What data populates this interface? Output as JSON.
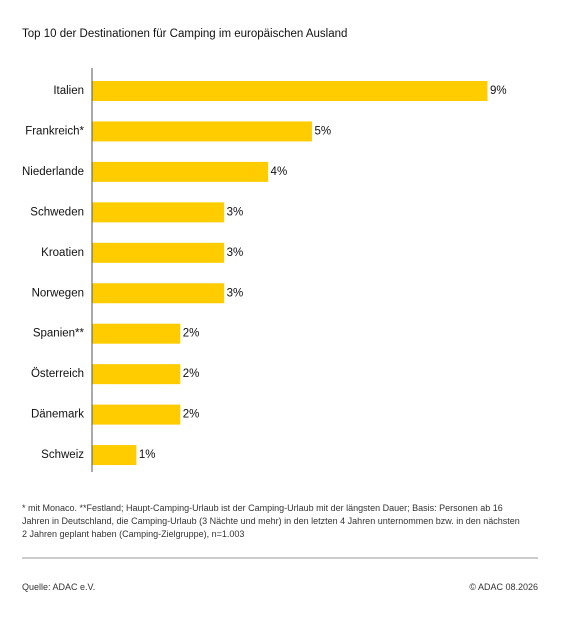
{
  "chart_data": {
    "type": "hbar",
    "title": "Top 10 der Destinationen für Camping im europäischen Ausland",
    "categories": [
      "Italien",
      "Frankreich*",
      "Niederlande",
      "Schweden",
      "Kroatien",
      "Norwegen",
      "Spanien**",
      "Österreich",
      "Dänemark",
      "Schweiz"
    ],
    "values": [
      9,
      5,
      4,
      3,
      3,
      3,
      2,
      2,
      2,
      1
    ],
    "value_labels": [
      "9%",
      "5%",
      "4%",
      "3%",
      "3%",
      "3%",
      "2%",
      "2%",
      "2%",
      "1%"
    ],
    "color": "#ffcc00",
    "footnote": "* mit Monaco. **Festland; Haupt-Camping-Urlaub ist der Camping-Urlaub mit der längsten Dauer; Basis: Personen ab 16 Jahren in Deutschland, die Camping-Urlaub (3 Nächte und mehr) in den letzten 4 Jahren unternommen bzw. in den nächsten 2 Jahren geplant haben (Camping-Zielgruppe), n=1.003",
    "source": "Quelle: ADAC e.V.",
    "copyright": "© ADAC 08.2026"
  }
}
